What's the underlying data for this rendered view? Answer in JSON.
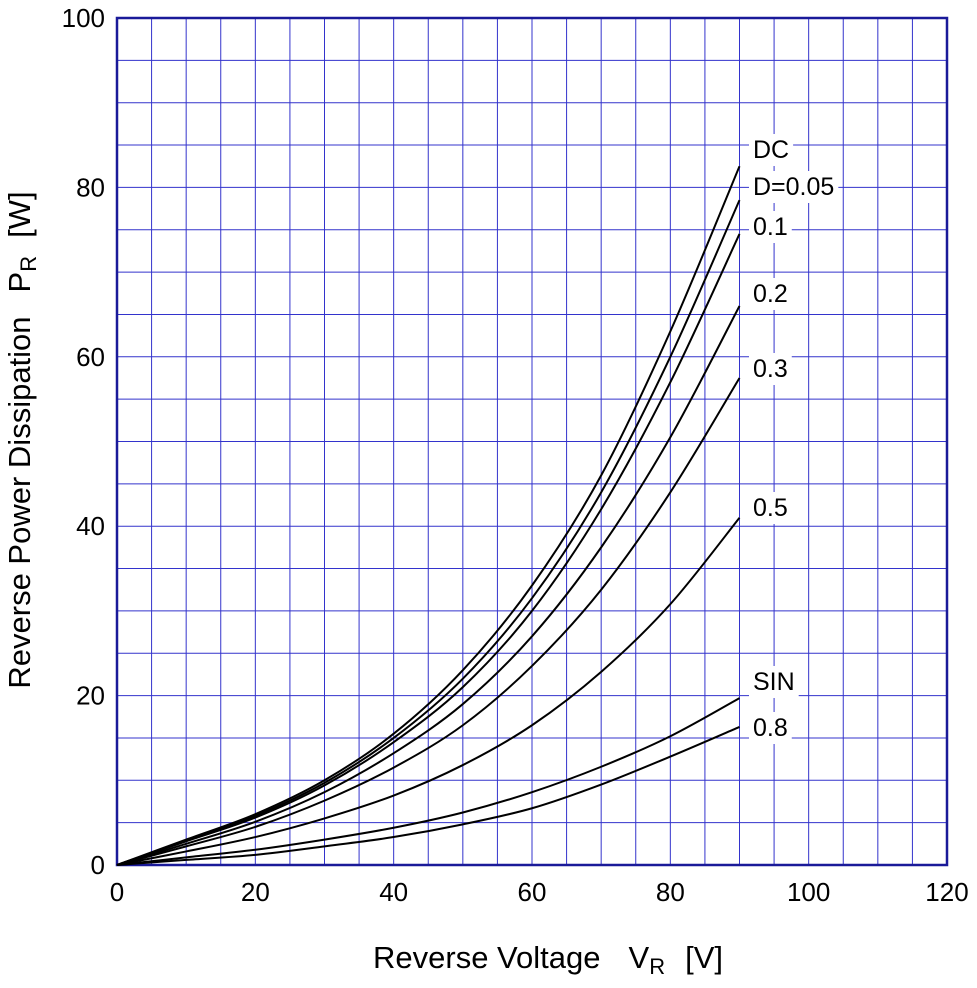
{
  "chart_data": {
    "type": "line",
    "xlabel": "Reverse Voltage",
    "xlabel_symbol": "V",
    "xlabel_sub": "R",
    "xlabel_unit": "[V]",
    "ylabel": "Reverse Power Dissipation",
    "ylabel_symbol": "P",
    "ylabel_sub": "R",
    "ylabel_unit": "[W]",
    "xlim": [
      0,
      120
    ],
    "ylim": [
      0,
      100
    ],
    "x_ticks": [
      "0",
      "20",
      "40",
      "60",
      "80",
      "100",
      "120"
    ],
    "y_ticks": [
      "0",
      "20",
      "40",
      "60",
      "80",
      "100"
    ],
    "grid": true,
    "colors": {
      "grid": "#3333cc",
      "frame": "#1a1a99",
      "curve": "#000000"
    },
    "series": [
      {
        "name": "DC",
        "x": [
          0,
          10,
          20,
          30,
          40,
          50,
          60,
          70,
          80,
          90
        ],
        "y": [
          0,
          3.0,
          6.0,
          10.0,
          15.5,
          23.0,
          33.0,
          46.0,
          63.0,
          82.5
        ]
      },
      {
        "name": "D=0.05",
        "x": [
          0,
          10,
          20,
          30,
          40,
          50,
          60,
          70,
          80,
          90
        ],
        "y": [
          0,
          2.9,
          5.8,
          9.7,
          15.0,
          22.0,
          31.5,
          44.0,
          60.0,
          78.5
        ]
      },
      {
        "name": "0.1",
        "x": [
          0,
          10,
          20,
          30,
          40,
          50,
          60,
          70,
          80,
          90
        ],
        "y": [
          0,
          2.8,
          5.6,
          9.4,
          14.5,
          21.0,
          30.0,
          42.0,
          57.0,
          74.5
        ]
      },
      {
        "name": "0.2",
        "x": [
          0,
          10,
          20,
          30,
          40,
          50,
          60,
          70,
          80,
          90
        ],
        "y": [
          0,
          2.5,
          5.1,
          8.6,
          13.2,
          19.0,
          27.0,
          37.5,
          50.5,
          66.0
        ]
      },
      {
        "name": "0.3",
        "x": [
          0,
          10,
          20,
          30,
          40,
          50,
          60,
          70,
          80,
          90
        ],
        "y": [
          0,
          2.2,
          4.5,
          7.6,
          11.5,
          16.5,
          23.5,
          32.5,
          44.0,
          57.5
        ]
      },
      {
        "name": "0.5",
        "x": [
          0,
          10,
          20,
          30,
          40,
          50,
          60,
          70,
          80,
          90
        ],
        "y": [
          0,
          1.6,
          3.3,
          5.5,
          8.2,
          11.8,
          16.5,
          22.8,
          30.8,
          41.0
        ]
      },
      {
        "name": "SIN",
        "x": [
          0,
          10,
          20,
          30,
          40,
          50,
          60,
          70,
          80,
          90
        ],
        "y": [
          0,
          0.9,
          1.8,
          3.0,
          4.4,
          6.2,
          8.6,
          11.6,
          15.2,
          19.7
        ]
      },
      {
        "name": "0.8",
        "x": [
          0,
          10,
          20,
          30,
          40,
          50,
          60,
          70,
          80,
          90
        ],
        "y": [
          0,
          0.6,
          1.2,
          2.2,
          3.3,
          4.8,
          6.7,
          9.5,
          12.8,
          16.3
        ]
      }
    ]
  }
}
